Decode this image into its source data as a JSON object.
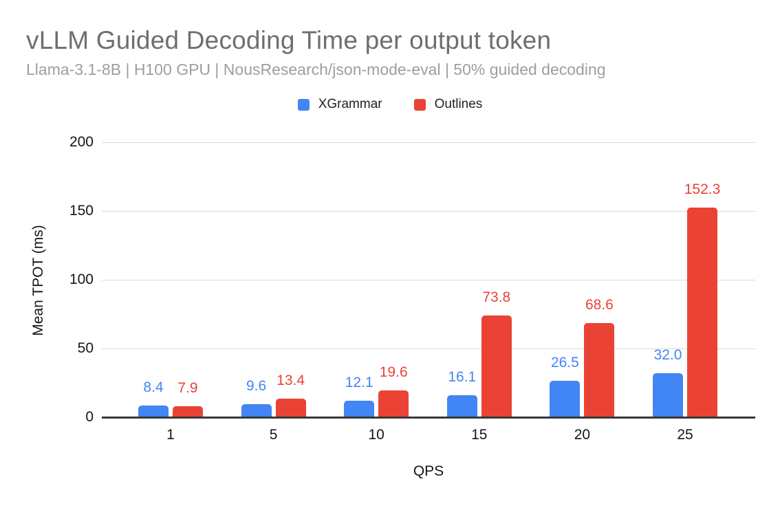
{
  "header": {
    "title": "vLLM Guided Decoding Time per output token",
    "subtitle": "Llama-3.1-8B | H100 GPU | NousResearch/json-mode-eval | 50% guided decoding"
  },
  "legend": {
    "items": [
      {
        "label": "XGrammar",
        "color": "#4285F4"
      },
      {
        "label": "Outlines",
        "color": "#EA4335"
      }
    ]
  },
  "chart_data": {
    "type": "bar",
    "categories": [
      "1",
      "5",
      "10",
      "15",
      "20",
      "25"
    ],
    "series": [
      {
        "name": "XGrammar",
        "color": "#4285F4",
        "values": [
          8.4,
          9.6,
          12.1,
          16.1,
          26.5,
          32.0
        ]
      },
      {
        "name": "Outlines",
        "color": "#EA4335",
        "values": [
          7.9,
          13.4,
          19.6,
          73.8,
          68.6,
          152.3
        ]
      }
    ],
    "title": "vLLM Guided Decoding Time per output token",
    "subtitle": "Llama-3.1-8B | H100 GPU | NousResearch/json-mode-eval | 50% guided decoding",
    "xlabel": "QPS",
    "ylabel": "Mean TPOT (ms)",
    "ylim": [
      0,
      200
    ],
    "yticks": [
      0,
      50,
      100,
      150,
      200
    ],
    "grid": true,
    "legend_position": "top",
    "value_labels": true,
    "value_label_decimals": 1
  },
  "colors": {
    "title_text": "#6e6e6e",
    "subtitle_text": "#9e9e9e",
    "gridline": "#d9d9d9",
    "axis_line": "#383838",
    "tick_text": "#151515"
  }
}
